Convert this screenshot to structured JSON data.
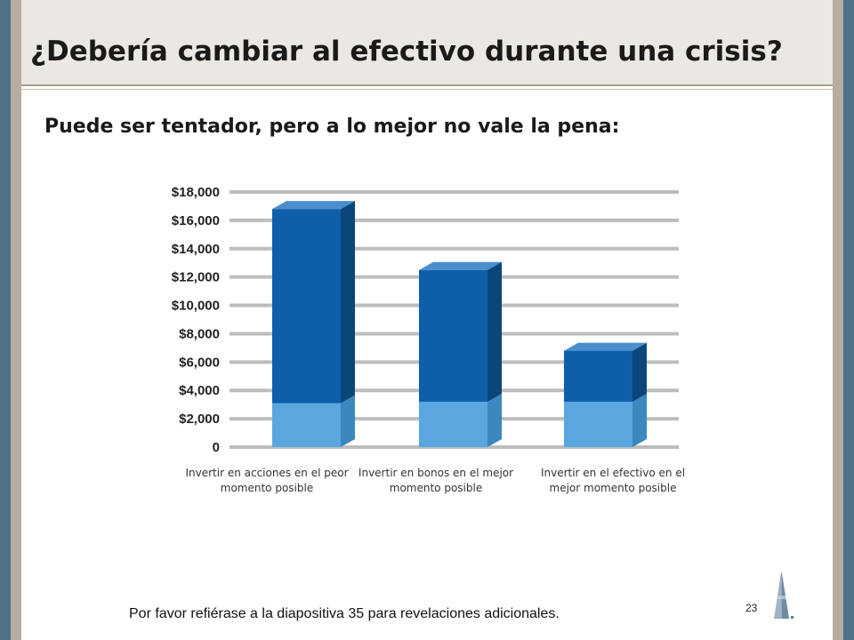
{
  "slide": {
    "title": "¿Debería cambiar al efectivo durante una crisis?",
    "subtitle": "Puede ser tentador, pero a lo mejor no vale la pena:",
    "footnote": "Por favor refiérase a la diapositiva 35 para revelaciones adicionales.",
    "page_number": "23",
    "logo_icon": "pyramid-building-logo-icon"
  },
  "colors": {
    "bar_top_front": "#0e5ea9",
    "bar_top_side": "#0a4778",
    "bar_top_cap": "#4a8fcc",
    "bar_base_front": "#5aa6df",
    "bar_base_side": "#3b87bf",
    "grid": "#bdbdbd"
  },
  "chart_data": {
    "type": "bar",
    "stacked": true,
    "style": "3d-column",
    "categories": [
      "Invertir en acciones en el peor momento posible",
      "Invertir en bonos en el mejor momento posible",
      "Invertir en el efectivo en el mejor momento posible"
    ],
    "series": [
      {
        "values": [
          3100,
          3200,
          3200
        ]
      },
      {
        "values": [
          13700,
          9300,
          3600
        ]
      }
    ],
    "totals": [
      16800,
      12500,
      6800
    ],
    "ylim": [
      0,
      18000
    ],
    "yticks": [
      0,
      2000,
      4000,
      6000,
      8000,
      10000,
      12000,
      14000,
      16000,
      18000
    ],
    "ytick_labels": [
      "0",
      "$2,000",
      "$4,000",
      "$6,000",
      "$8,000",
      "$10,000",
      "$12,000",
      "$14,000",
      "$16,000",
      "$18,000"
    ],
    "grid": true,
    "legend": "none",
    "title": "",
    "xlabel": "",
    "ylabel": ""
  }
}
